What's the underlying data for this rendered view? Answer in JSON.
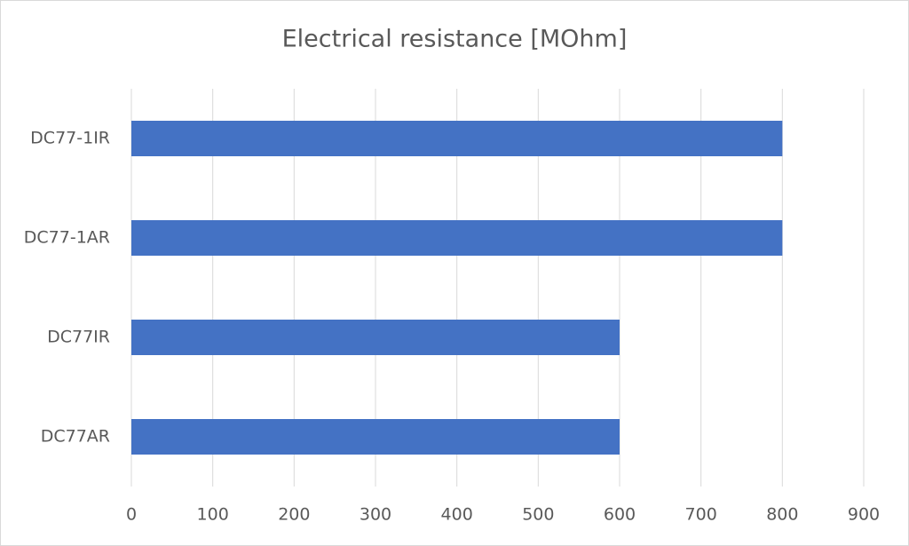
{
  "chart_data": {
    "type": "bar",
    "orientation": "horizontal",
    "title": "Electrical resistance [MOhm]",
    "categories": [
      "DC77-1IR",
      "DC77-1AR",
      "DC77IR",
      "DC77AR"
    ],
    "values": [
      800,
      800,
      600,
      600
    ],
    "color": "#4472c4",
    "xlim": [
      0,
      900
    ],
    "xticks": [
      0,
      100,
      200,
      300,
      400,
      500,
      600,
      700,
      800,
      900
    ],
    "grid": true
  }
}
